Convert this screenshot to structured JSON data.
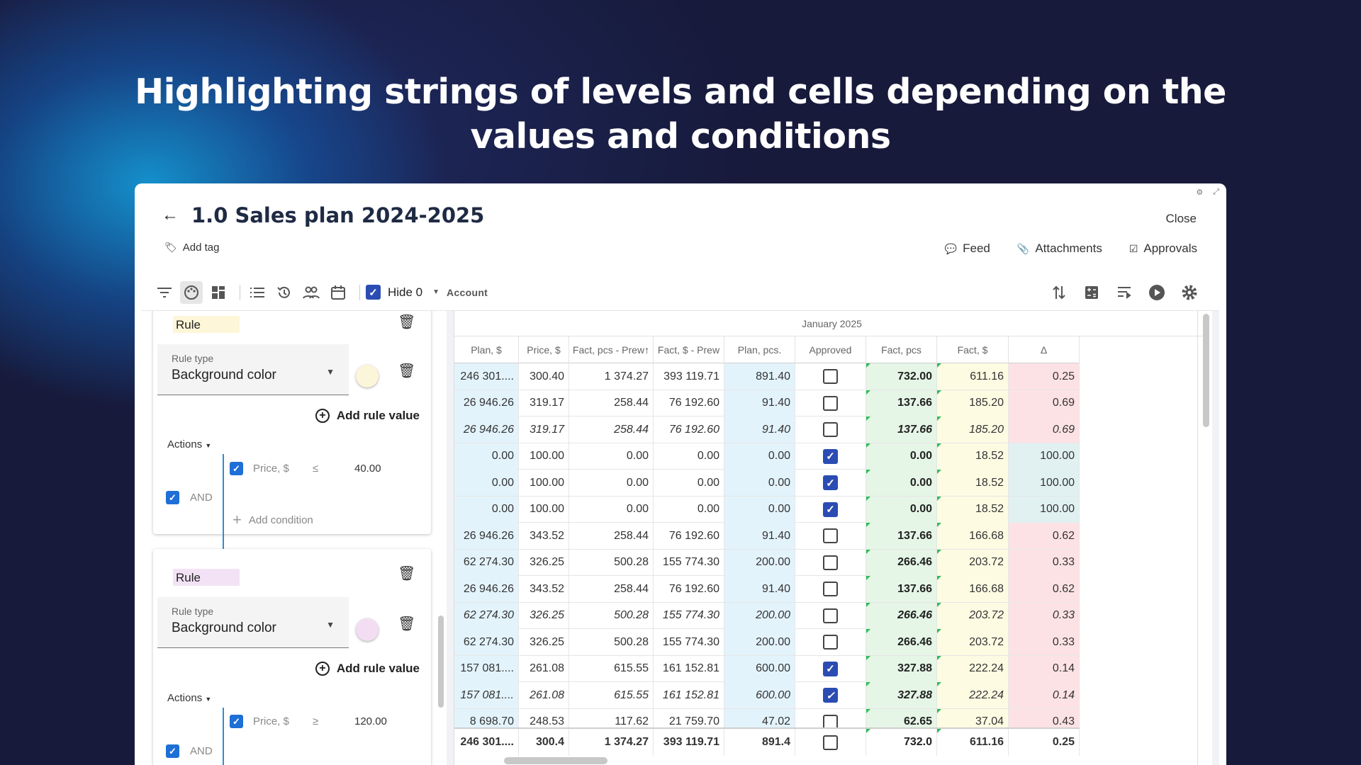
{
  "headline": "Highlighting strings of levels and cells depending on the values and conditions",
  "window": {
    "title": "1.0 Sales plan 2024-2025",
    "close_label": "Close",
    "add_tag_label": "Add tag",
    "links": {
      "feed": "Feed",
      "attachments": "Attachments",
      "approvals": "Approvals"
    }
  },
  "toolbar": {
    "hide_label": "Hide 0",
    "account_label": "Account",
    "hide_zero_checked": true
  },
  "rules": [
    {
      "label": "Rule",
      "chip_color": "#fdf6d8",
      "rule_type_label": "Rule type",
      "rule_type_value": "Background color",
      "color": "#fbf6da",
      "add_rule_value": "Add rule value",
      "actions_label": "Actions",
      "logic_label": "AND",
      "condition": {
        "field": "Price, $",
        "operator": "≤",
        "value": "40.00"
      },
      "add_condition": "Add condition"
    },
    {
      "label": "Rule",
      "chip_color": "#f3e2f5",
      "rule_type_label": "Rule type",
      "rule_type_value": "Background color",
      "color": "#f2ddf3",
      "add_rule_value": "Add rule value",
      "actions_label": "Actions",
      "logic_label": "AND",
      "condition": {
        "field": "Price, $",
        "operator": "≥",
        "value": "120.00"
      }
    }
  ],
  "grid": {
    "period": "January 2025",
    "columns": [
      "Plan, $",
      "Price, $",
      "Fact, pcs - Prew",
      "Fact, $ - Prew",
      "Plan, pcs.",
      "Approved",
      "Fact, pcs",
      "Fact, $",
      "Δ"
    ],
    "sort_icon": "arrow-up-icon",
    "colors": {
      "blue": "#e3f3fc",
      "green": "#e5f5e6",
      "yellow": "#fdfbe2",
      "pink": "#fde2e5",
      "teal": "#e1f1f1"
    },
    "rows": [
      {
        "italic": false,
        "cells": [
          "246 301....",
          "300.40",
          "1 374.27",
          "393 119.71",
          "891.40",
          false,
          "732.00",
          "611.16",
          "0.25"
        ],
        "delta_color": "pink"
      },
      {
        "italic": false,
        "cells": [
          "26 946.26",
          "319.17",
          "258.44",
          "76 192.60",
          "91.40",
          false,
          "137.66",
          "185.20",
          "0.69"
        ],
        "delta_color": "pink"
      },
      {
        "italic": true,
        "cells": [
          "26 946.26",
          "319.17",
          "258.44",
          "76 192.60",
          "91.40",
          false,
          "137.66",
          "185.20",
          "0.69"
        ],
        "delta_color": "pink"
      },
      {
        "italic": false,
        "cells": [
          "0.00",
          "100.00",
          "0.00",
          "0.00",
          "0.00",
          true,
          "0.00",
          "18.52",
          "100.00"
        ],
        "delta_color": "teal"
      },
      {
        "italic": false,
        "cells": [
          "0.00",
          "100.00",
          "0.00",
          "0.00",
          "0.00",
          true,
          "0.00",
          "18.52",
          "100.00"
        ],
        "delta_color": "teal"
      },
      {
        "italic": false,
        "cells": [
          "0.00",
          "100.00",
          "0.00",
          "0.00",
          "0.00",
          true,
          "0.00",
          "18.52",
          "100.00"
        ],
        "delta_color": "teal"
      },
      {
        "italic": false,
        "cells": [
          "26 946.26",
          "343.52",
          "258.44",
          "76 192.60",
          "91.40",
          false,
          "137.66",
          "166.68",
          "0.62"
        ],
        "delta_color": "pink"
      },
      {
        "italic": false,
        "cells": [
          "62 274.30",
          "326.25",
          "500.28",
          "155 774.30",
          "200.00",
          false,
          "266.46",
          "203.72",
          "0.33"
        ],
        "delta_color": "pink"
      },
      {
        "italic": false,
        "cells": [
          "26 946.26",
          "343.52",
          "258.44",
          "76 192.60",
          "91.40",
          false,
          "137.66",
          "166.68",
          "0.62"
        ],
        "delta_color": "pink"
      },
      {
        "italic": true,
        "cells": [
          "62 274.30",
          "326.25",
          "500.28",
          "155 774.30",
          "200.00",
          false,
          "266.46",
          "203.72",
          "0.33"
        ],
        "delta_color": "pink"
      },
      {
        "italic": false,
        "cells": [
          "62 274.30",
          "326.25",
          "500.28",
          "155 774.30",
          "200.00",
          false,
          "266.46",
          "203.72",
          "0.33"
        ],
        "delta_color": "pink"
      },
      {
        "italic": false,
        "cells": [
          "157 081....",
          "261.08",
          "615.55",
          "161 152.81",
          "600.00",
          true,
          "327.88",
          "222.24",
          "0.14"
        ],
        "delta_color": "pink"
      },
      {
        "italic": true,
        "cells": [
          "157 081....",
          "261.08",
          "615.55",
          "161 152.81",
          "600.00",
          true,
          "327.88",
          "222.24",
          "0.14"
        ],
        "delta_color": "pink"
      },
      {
        "italic": false,
        "cells": [
          "8 698.70",
          "248.53",
          "117.62",
          "21 759.70",
          "47.02",
          false,
          "62.65",
          "37.04",
          "0.43"
        ],
        "delta_color": "pink"
      }
    ],
    "total": [
      "246 301....",
      "300.4",
      "1 374.27",
      "393 119.71",
      "891.4",
      false,
      "732.0",
      "611.16",
      "0.25"
    ]
  }
}
